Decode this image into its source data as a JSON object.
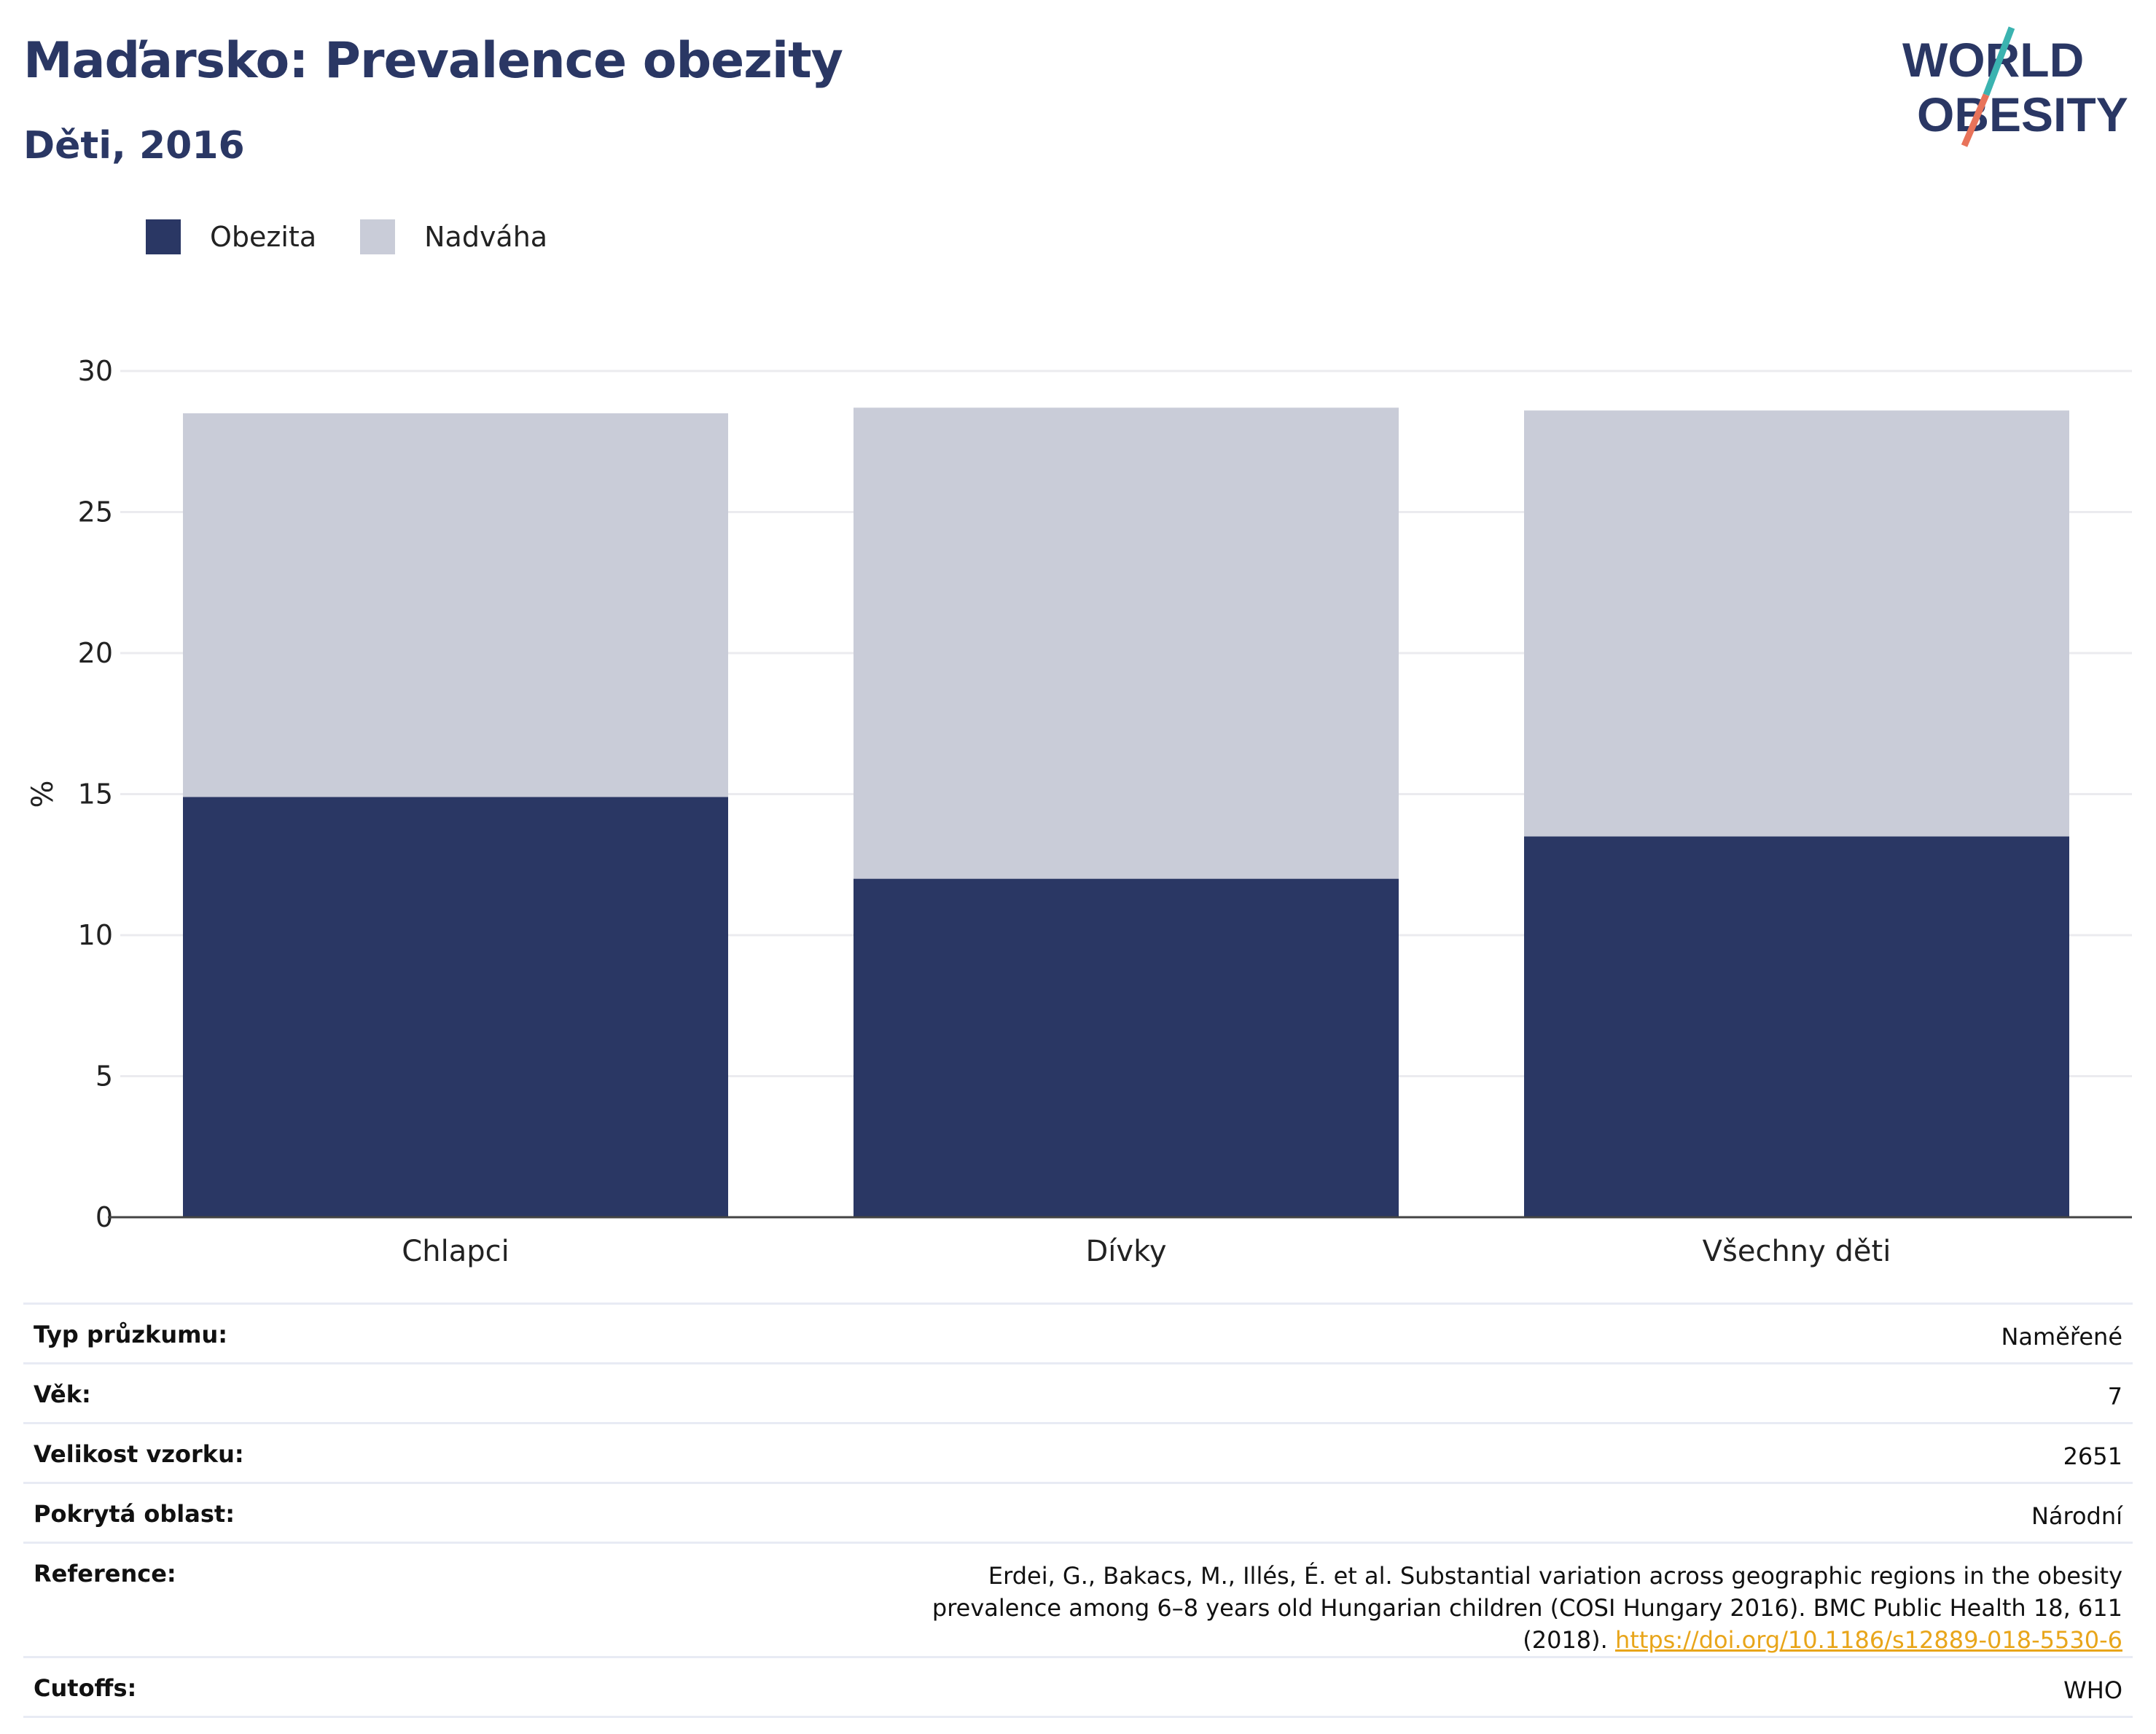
{
  "header": {
    "title": "Maďarsko: Prevalence obezity",
    "subtitle": "Děti, 2016"
  },
  "logo": {
    "line1": "WORLD",
    "line2": "OBESITY"
  },
  "colors": {
    "obesity": "#2a3764",
    "overweight": "#c9ccd8",
    "title": "#2a3764",
    "link": "#e8a51a"
  },
  "chart_data": {
    "type": "bar",
    "stacked": true,
    "categories": [
      "Chlapci",
      "Dívky",
      "Všechny děti"
    ],
    "series": [
      {
        "name": "Obezita",
        "values": [
          14.9,
          12.0,
          13.5
        ],
        "color": "#2a3764"
      },
      {
        "name": "Nadváha",
        "values": [
          13.6,
          16.7,
          15.1
        ],
        "color": "#c9ccd8"
      }
    ],
    "ylabel": "%",
    "ylim": [
      0,
      30
    ],
    "yticks": [
      0,
      5,
      10,
      15,
      20,
      25,
      30
    ],
    "grid": true,
    "legend": "top-left"
  },
  "info": [
    {
      "key": "Typ průzkumu:",
      "value": "Naměřené"
    },
    {
      "key": "Věk:",
      "value": "7"
    },
    {
      "key": "Velikost vzorku:",
      "value": "2651"
    },
    {
      "key": "Pokrytá oblast:",
      "value": "Národní"
    },
    {
      "key": "Reference:",
      "value": "Erdei, G., Bakacs, M., Illés, É. et al. Substantial variation across geographic regions in the obesity prevalence among 6–8 years old Hungarian children (COSI Hungary 2016). BMC Public Health 18, 611 (2018). ",
      "link": "https://doi.org/10.1186/s12889-018-5530-6"
    },
    {
      "key": "Cutoffs:",
      "value": "WHO"
    }
  ]
}
